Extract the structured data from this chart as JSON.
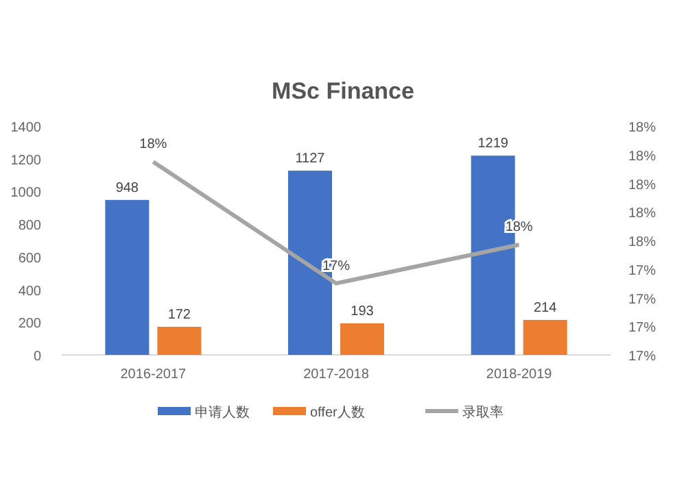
{
  "chart_data": {
    "type": "bar",
    "title": "MSc Finance",
    "categories": [
      "2016-2017",
      "2017-2018",
      "2018-2019"
    ],
    "series": [
      {
        "name": "申请人数",
        "color": "#4472c4",
        "values": [
          948,
          1127,
          1219
        ],
        "value_labels": [
          "948",
          "1127",
          "1219"
        ]
      },
      {
        "name": "offer人数",
        "color": "#ed7d31",
        "values": [
          172,
          193,
          214
        ],
        "value_labels": [
          "172",
          "193",
          "214"
        ]
      },
      {
        "name": "录取率",
        "type": "line",
        "axis": "y2",
        "color": "#a5a5a5",
        "values": [
          18.15,
          17.3,
          17.57
        ],
        "value_labels": [
          "18%",
          "17%",
          "18%"
        ]
      }
    ],
    "ylim": [
      0,
      1400
    ],
    "yticks": [
      0,
      200,
      400,
      600,
      800,
      1000,
      1200,
      1400
    ],
    "y2lim": [
      16.8,
      18.4
    ],
    "y2ticks": [
      {
        "value": 16.8,
        "label": "17%"
      },
      {
        "value": 17.0,
        "label": "17%"
      },
      {
        "value": 17.2,
        "label": "17%"
      },
      {
        "value": 17.4,
        "label": "17%"
      },
      {
        "value": 17.6,
        "label": "18%"
      },
      {
        "value": 17.8,
        "label": "18%"
      },
      {
        "value": 18.0,
        "label": "18%"
      },
      {
        "value": 18.2,
        "label": "18%"
      },
      {
        "value": 18.4,
        "label": "18%"
      }
    ],
    "grid": false,
    "legend": "bottom"
  }
}
